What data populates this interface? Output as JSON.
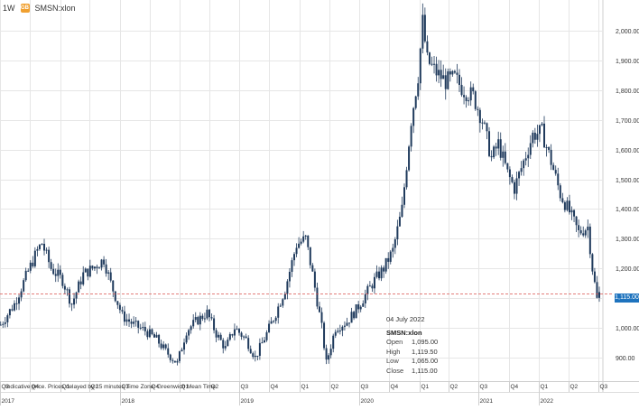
{
  "header": {
    "period": "1W",
    "symbol": "SMSN:xlon",
    "icon": "exchange-badge-icon",
    "icon_text": "GB"
  },
  "current_price_label": "1,115.00",
  "tooltip": {
    "date": "04 July 2022",
    "symbol": "SMSN:xlon",
    "rows": [
      {
        "label": "Open",
        "value": "1,095.00"
      },
      {
        "label": "High",
        "value": "1,119.50"
      },
      {
        "label": "Low",
        "value": "1,065.00"
      },
      {
        "label": "Close",
        "value": "1,115.00"
      }
    ]
  },
  "disclaimer": "Indicative price. Prices delayed by 15 minutes   Time Zone: Greenwich Mean Time",
  "colors": {
    "candle": "#1f3a5c",
    "grid": "#e6e6e6",
    "price_line": "#d9534f",
    "price_tag": "#1e73be"
  },
  "chart_data": {
    "type": "candlestick",
    "title": "",
    "xlabel": "",
    "ylabel": "",
    "ylim": [
      820,
      2080
    ],
    "y_ticks": [
      900,
      1000,
      1100,
      1200,
      1300,
      1400,
      1500,
      1600,
      1700,
      1800,
      1900,
      2000
    ],
    "y_tick_labels": [
      "900.00",
      "1,000.00",
      "1,100.00",
      "1,200.00",
      "1,300.00",
      "1,400.00",
      "1,500.00",
      "1,600.00",
      "1,700.00",
      "1,800.00",
      "1,900.00",
      "2,000.00"
    ],
    "x_range": [
      "2017-07-01",
      "2022-07-15"
    ],
    "quarters": [
      {
        "date": "2017-07-01",
        "label": "Q3"
      },
      {
        "date": "2017-10-01",
        "label": "Q4"
      },
      {
        "date": "2018-01-01",
        "label": "Q1"
      },
      {
        "date": "2018-04-01",
        "label": "Q2"
      },
      {
        "date": "2018-07-01",
        "label": "Q3"
      },
      {
        "date": "2018-10-01",
        "label": "Q4"
      },
      {
        "date": "2019-01-01",
        "label": "Q1"
      },
      {
        "date": "2019-04-01",
        "label": "Q2"
      },
      {
        "date": "2019-07-01",
        "label": "Q3"
      },
      {
        "date": "2019-10-01",
        "label": "Q4"
      },
      {
        "date": "2020-01-01",
        "label": "Q1"
      },
      {
        "date": "2020-04-01",
        "label": "Q2"
      },
      {
        "date": "2020-07-01",
        "label": "Q3"
      },
      {
        "date": "2020-10-01",
        "label": "Q4"
      },
      {
        "date": "2021-01-01",
        "label": "Q1"
      },
      {
        "date": "2021-04-01",
        "label": "Q2"
      },
      {
        "date": "2021-07-01",
        "label": "Q3"
      },
      {
        "date": "2021-10-01",
        "label": "Q4"
      },
      {
        "date": "2022-01-01",
        "label": "Q1"
      },
      {
        "date": "2022-04-01",
        "label": "Q2"
      },
      {
        "date": "2022-07-01",
        "label": "Q3"
      }
    ],
    "years": [
      {
        "date": "2017-07-01",
        "label": "2017"
      },
      {
        "date": "2018-07-01",
        "label": "2018"
      },
      {
        "date": "2019-07-01",
        "label": "2019"
      },
      {
        "date": "2020-07-01",
        "label": "2020"
      },
      {
        "date": "2021-07-01",
        "label": "2021"
      },
      {
        "date": "2022-01-01",
        "label": "2022"
      }
    ],
    "current_price": 1115,
    "price_path": [
      [
        "2017-07-03",
        1010
      ],
      [
        "2017-08-14",
        1080
      ],
      [
        "2017-09-25",
        1190
      ],
      [
        "2017-10-23",
        1260
      ],
      [
        "2017-11-06",
        1285
      ],
      [
        "2017-12-04",
        1200
      ],
      [
        "2018-01-08",
        1160
      ],
      [
        "2018-02-05",
        1080
      ],
      [
        "2018-03-12",
        1180
      ],
      [
        "2018-04-09",
        1200
      ],
      [
        "2018-05-14",
        1230
      ],
      [
        "2018-06-04",
        1150
      ],
      [
        "2018-07-09",
        1040
      ],
      [
        "2018-08-13",
        1010
      ],
      [
        "2018-09-17",
        990
      ],
      [
        "2018-10-22",
        960
      ],
      [
        "2018-11-19",
        920
      ],
      [
        "2018-12-24",
        880
      ],
      [
        "2019-01-21",
        990
      ],
      [
        "2019-02-18",
        1020
      ],
      [
        "2019-03-25",
        1050
      ],
      [
        "2019-04-22",
        980
      ],
      [
        "2019-05-20",
        930
      ],
      [
        "2019-06-17",
        1000
      ],
      [
        "2019-07-22",
        960
      ],
      [
        "2019-08-19",
        900
      ],
      [
        "2019-09-23",
        980
      ],
      [
        "2019-10-21",
        1050
      ],
      [
        "2019-11-18",
        1130
      ],
      [
        "2019-12-23",
        1280
      ],
      [
        "2020-01-20",
        1300
      ],
      [
        "2020-02-10",
        1180
      ],
      [
        "2020-03-09",
        1000
      ],
      [
        "2020-03-23",
        880
      ],
      [
        "2020-04-20",
        1000
      ],
      [
        "2020-05-25",
        1020
      ],
      [
        "2020-06-22",
        1060
      ],
      [
        "2020-07-20",
        1110
      ],
      [
        "2020-08-17",
        1160
      ],
      [
        "2020-09-14",
        1200
      ],
      [
        "2020-10-12",
        1260
      ],
      [
        "2020-11-09",
        1400
      ],
      [
        "2020-12-07",
        1700
      ],
      [
        "2020-12-28",
        1850
      ],
      [
        "2021-01-11",
        2030
      ],
      [
        "2021-01-25",
        1900
      ],
      [
        "2021-02-22",
        1860
      ],
      [
        "2021-03-22",
        1830
      ],
      [
        "2021-04-19",
        1840
      ],
      [
        "2021-05-17",
        1800
      ],
      [
        "2021-06-14",
        1780
      ],
      [
        "2021-07-12",
        1700
      ],
      [
        "2021-08-09",
        1570
      ],
      [
        "2021-08-30",
        1620
      ],
      [
        "2021-09-27",
        1520
      ],
      [
        "2021-10-18",
        1470
      ],
      [
        "2021-11-15",
        1560
      ],
      [
        "2021-12-13",
        1650
      ],
      [
        "2022-01-10",
        1660
      ],
      [
        "2022-02-07",
        1560
      ],
      [
        "2022-03-07",
        1450
      ],
      [
        "2022-04-04",
        1390
      ],
      [
        "2022-05-02",
        1320
      ],
      [
        "2022-05-30",
        1340
      ],
      [
        "2022-06-13",
        1200
      ],
      [
        "2022-06-27",
        1095
      ],
      [
        "2022-07-04",
        1115
      ]
    ]
  }
}
